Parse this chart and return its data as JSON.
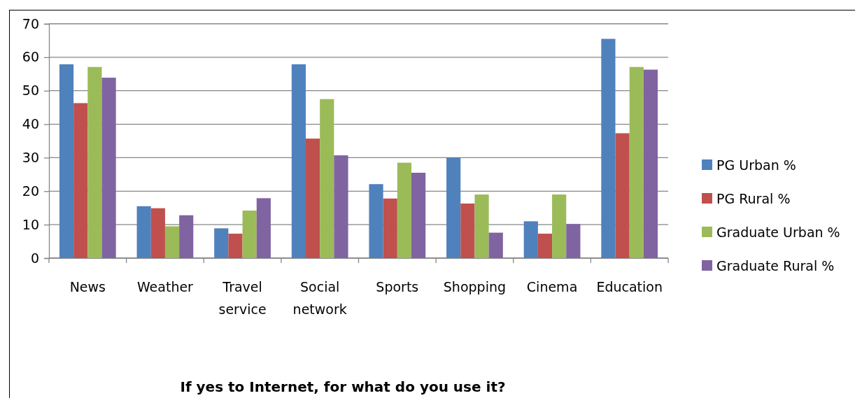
{
  "chart_data": {
    "type": "bar",
    "title": "If yes to Internet, for what do you use it?",
    "categories": [
      "News",
      "Weather",
      "Travel service",
      "Social network",
      "Sports",
      "Shopping",
      "Cinema",
      "Education"
    ],
    "series": [
      {
        "name": "PG Urban %",
        "color": "#4f81bd",
        "values": [
          57.9,
          15.5,
          8.9,
          57.9,
          22.1,
          30.0,
          11.0,
          65.5
        ]
      },
      {
        "name": "PG Rural %",
        "color": "#c0504d",
        "values": [
          46.3,
          14.9,
          7.3,
          35.7,
          17.8,
          16.3,
          7.3,
          37.3
        ]
      },
      {
        "name": "Graduate Urban %",
        "color": "#9bbb59",
        "values": [
          57.1,
          9.5,
          14.2,
          47.5,
          28.5,
          19.0,
          19.0,
          57.1
        ]
      },
      {
        "name": "Graduate Rural %",
        "color": "#8064a2",
        "values": [
          53.9,
          12.8,
          17.9,
          30.7,
          25.5,
          7.6,
          10.2,
          56.3
        ]
      }
    ],
    "ylim": [
      0,
      70
    ],
    "yticks": [
      0,
      10,
      20,
      30,
      40,
      50,
      60,
      70
    ],
    "grid": "y",
    "legend": "right"
  }
}
